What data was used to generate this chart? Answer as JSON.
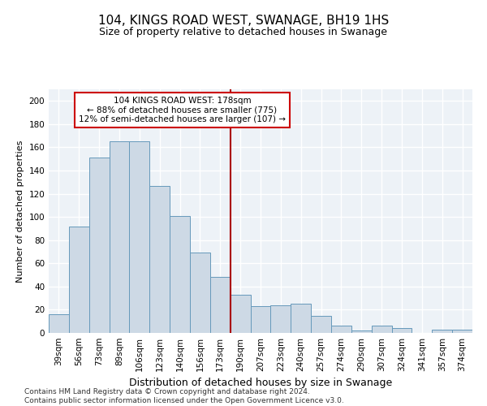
{
  "title": "104, KINGS ROAD WEST, SWANAGE, BH19 1HS",
  "subtitle": "Size of property relative to detached houses in Swanage",
  "xlabel": "Distribution of detached houses by size in Swanage",
  "ylabel": "Number of detached properties",
  "categories": [
    "39sqm",
    "56sqm",
    "73sqm",
    "89sqm",
    "106sqm",
    "123sqm",
    "140sqm",
    "156sqm",
    "173sqm",
    "190sqm",
    "207sqm",
    "223sqm",
    "240sqm",
    "257sqm",
    "274sqm",
    "290sqm",
    "307sqm",
    "324sqm",
    "341sqm",
    "357sqm",
    "374sqm"
  ],
  "values": [
    16,
    92,
    151,
    165,
    165,
    127,
    101,
    69,
    48,
    33,
    23,
    24,
    25,
    15,
    6,
    2,
    6,
    4,
    0,
    3,
    3
  ],
  "bar_color": "#cdd9e5",
  "bar_edge_color": "#6699bb",
  "vline_color": "#aa0000",
  "annotation_text": "104 KINGS ROAD WEST: 178sqm\n← 88% of detached houses are smaller (775)\n12% of semi-detached houses are larger (107) →",
  "annotation_box_edgecolor": "#cc0000",
  "annotation_bg": "white",
  "ylim": [
    0,
    210
  ],
  "yticks": [
    0,
    20,
    40,
    60,
    80,
    100,
    120,
    140,
    160,
    180,
    200
  ],
  "background_color": "#edf2f7",
  "grid_color": "#ffffff",
  "footer": "Contains HM Land Registry data © Crown copyright and database right 2024.\nContains public sector information licensed under the Open Government Licence v3.0.",
  "title_fontsize": 11,
  "subtitle_fontsize": 9,
  "ylabel_fontsize": 8,
  "xlabel_fontsize": 9,
  "tick_fontsize": 7.5,
  "footer_fontsize": 6.5
}
